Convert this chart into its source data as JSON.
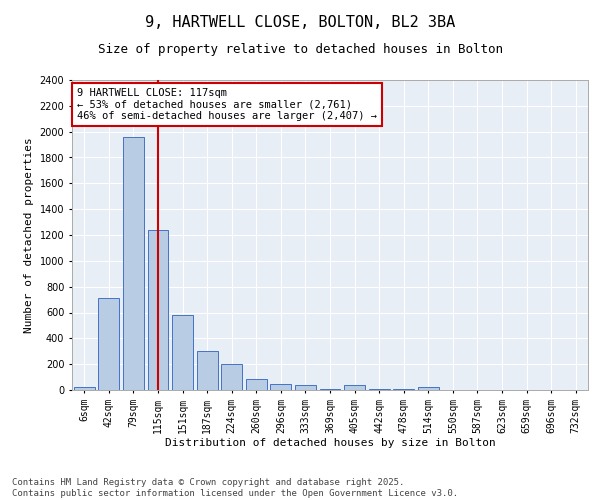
{
  "title_line1": "9, HARTWELL CLOSE, BOLTON, BL2 3BA",
  "title_line2": "Size of property relative to detached houses in Bolton",
  "xlabel": "Distribution of detached houses by size in Bolton",
  "ylabel": "Number of detached properties",
  "categories": [
    "6sqm",
    "42sqm",
    "79sqm",
    "115sqm",
    "151sqm",
    "187sqm",
    "224sqm",
    "260sqm",
    "296sqm",
    "333sqm",
    "369sqm",
    "405sqm",
    "442sqm",
    "478sqm",
    "514sqm",
    "550sqm",
    "587sqm",
    "623sqm",
    "659sqm",
    "696sqm",
    "732sqm"
  ],
  "values": [
    20,
    715,
    1960,
    1240,
    580,
    305,
    200,
    85,
    50,
    35,
    10,
    35,
    5,
    5,
    20,
    0,
    0,
    0,
    0,
    0,
    0
  ],
  "bar_color": "#b8cce4",
  "bar_edge_color": "#4472c4",
  "vline_color": "#cc0000",
  "annotation_text": "9 HARTWELL CLOSE: 117sqm\n← 53% of detached houses are smaller (2,761)\n46% of semi-detached houses are larger (2,407) →",
  "annotation_box_color": "#cc0000",
  "ylim": [
    0,
    2400
  ],
  "yticks": [
    0,
    200,
    400,
    600,
    800,
    1000,
    1200,
    1400,
    1600,
    1800,
    2000,
    2200,
    2400
  ],
  "bg_color": "#e8eef6",
  "grid_color": "#ffffff",
  "footer_text": "Contains HM Land Registry data © Crown copyright and database right 2025.\nContains public sector information licensed under the Open Government Licence v3.0.",
  "title_fontsize": 11,
  "subtitle_fontsize": 9,
  "axis_label_fontsize": 8,
  "tick_fontsize": 7,
  "annotation_fontsize": 7.5,
  "footer_fontsize": 6.5
}
